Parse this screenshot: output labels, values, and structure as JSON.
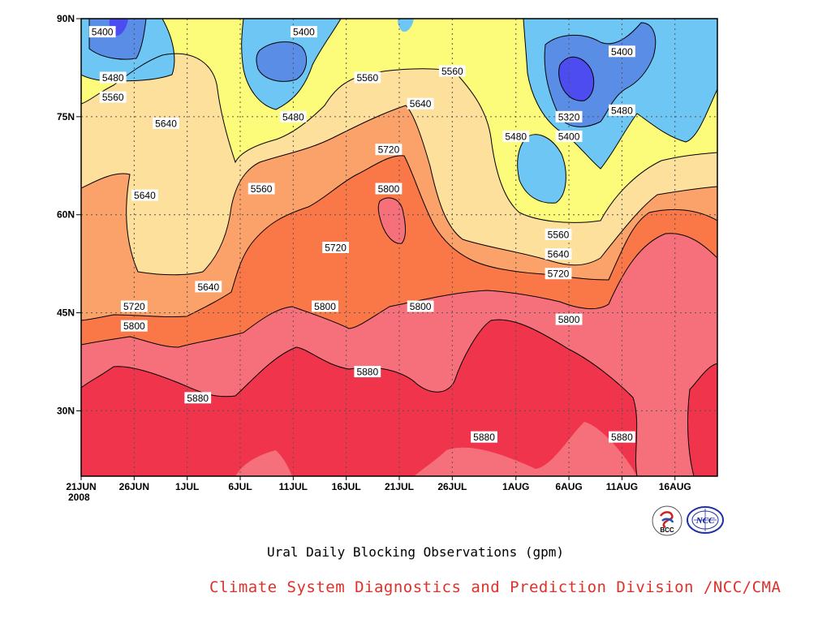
{
  "title": "Ural Daily Blocking Observations (gpm)",
  "credit": "Climate System Diagnostics and Prediction Division /NCC/CMA",
  "logos": [
    {
      "label": "BCC",
      "icon": "bcc-logo-icon"
    },
    {
      "label": "NCC",
      "icon": "ncc-logo-icon"
    }
  ],
  "colors": {
    "lt5320": "#4c4cf0",
    "c5320_5400": "#5a8ee6",
    "c5400_5480": "#6ec6f5",
    "c5480_5560": "#fcfc7a",
    "c5560_5640": "#fde09c",
    "c5640_5720": "#fba26a",
    "c5720_5800": "#fa7848",
    "c5800_5880": "#f5707a",
    "gt5880": "#f0344c"
  },
  "chart_data": {
    "type": "heatmap",
    "subtype": "filled-contour (time-latitude)",
    "title": "Ural Daily Blocking Observations (gpm)",
    "x_axis": {
      "ticks": [
        "21JUN",
        "26JUN",
        "1JUL",
        "6JUL",
        "11JUL",
        "16JUL",
        "21JUL",
        "26JUL",
        "1AUG",
        "6AUG",
        "11AUG",
        "16AUG"
      ],
      "year_label": "2008",
      "range": [
        "21JUN2008",
        "20AUG2008"
      ]
    },
    "y_axis": {
      "ticks": [
        "30N",
        "45N",
        "60N",
        "75N",
        "90N"
      ],
      "range": [
        20,
        90
      ],
      "unit": "latitude"
    },
    "contour_levels": [
      5320,
      5400,
      5480,
      5560,
      5640,
      5720,
      5800,
      5880
    ],
    "grid": true,
    "contour_labels": [
      {
        "date": "23JUN",
        "lat": 88,
        "value": "5400"
      },
      {
        "date": "24JUN",
        "lat": 81,
        "value": "5480"
      },
      {
        "date": "24JUN",
        "lat": 78,
        "value": "5560"
      },
      {
        "date": "29JUN",
        "lat": 74,
        "value": "5640"
      },
      {
        "date": "27JUN",
        "lat": 63,
        "value": "5640"
      },
      {
        "date": "26JUN",
        "lat": 46,
        "value": "5720"
      },
      {
        "date": "26JUN",
        "lat": 43,
        "value": "5800"
      },
      {
        "date": "2JUL",
        "lat": 32,
        "value": "5880"
      },
      {
        "date": "3JUL",
        "lat": 49,
        "value": "5640"
      },
      {
        "date": "8JUL",
        "lat": 64,
        "value": "5560"
      },
      {
        "date": "12JUL",
        "lat": 88,
        "value": "5400"
      },
      {
        "date": "11JUL",
        "lat": 75,
        "value": "5480"
      },
      {
        "date": "15JUL",
        "lat": 55,
        "value": "5720"
      },
      {
        "date": "14JUL",
        "lat": 46,
        "value": "5800"
      },
      {
        "date": "18JUL",
        "lat": 81,
        "value": "5560"
      },
      {
        "date": "18JUL",
        "lat": 36,
        "value": "5880"
      },
      {
        "date": "20JUL",
        "lat": 70,
        "value": "5720"
      },
      {
        "date": "20JUL",
        "lat": 64,
        "value": "5800"
      },
      {
        "date": "23JUL",
        "lat": 77,
        "value": "5640"
      },
      {
        "date": "23JUL",
        "lat": 46,
        "value": "5800"
      },
      {
        "date": "26JUL",
        "lat": 82,
        "value": "5560"
      },
      {
        "date": "29JUL",
        "lat": 26,
        "value": "5880"
      },
      {
        "date": "1AUG",
        "lat": 72,
        "value": "5480"
      },
      {
        "date": "5AUG",
        "lat": 57,
        "value": "5560"
      },
      {
        "date": "5AUG",
        "lat": 54,
        "value": "5640"
      },
      {
        "date": "5AUG",
        "lat": 51,
        "value": "5720"
      },
      {
        "date": "6AUG",
        "lat": 75,
        "value": "5320"
      },
      {
        "date": "6AUG",
        "lat": 72,
        "value": "5400"
      },
      {
        "date": "6AUG",
        "lat": 44,
        "value": "5800"
      },
      {
        "date": "11AUG",
        "lat": 85,
        "value": "5400"
      },
      {
        "date": "11AUG",
        "lat": 76,
        "value": "5480"
      },
      {
        "date": "11AUG",
        "lat": 26,
        "value": "5880"
      }
    ]
  }
}
